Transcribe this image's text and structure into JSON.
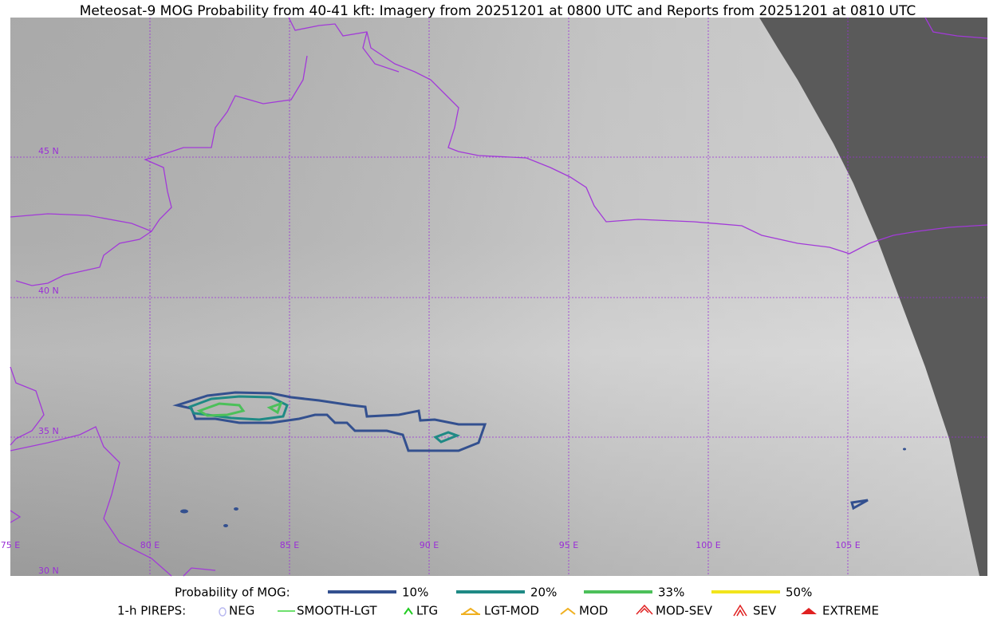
{
  "title": "Meteosat-9 MOG Probability from 40-41 kft: Imagery from 20251201 at 0800 UTC and Reports from 20251201 at 0810 UTC",
  "map": {
    "lat_labels": [
      "45 N",
      "40 N",
      "35 N",
      "30 N"
    ],
    "lon_labels": [
      "75 E",
      "80 E",
      "85 E",
      "90 E",
      "95 E",
      "100 E",
      "105 E"
    ]
  },
  "legend": {
    "probability": {
      "title": "Probability of MOG:",
      "items": [
        {
          "label": "10%",
          "color": "#33508f"
        },
        {
          "label": "20%",
          "color": "#1f8a85"
        },
        {
          "label": "33%",
          "color": "#4cc05a"
        },
        {
          "label": "50%",
          "color": "#f2e51c"
        }
      ]
    },
    "pireps": {
      "title": "1-h PIREPS:",
      "items": [
        "NEG",
        "SMOOTH-LGT",
        "LTG",
        "LGT-MOD",
        "MOD",
        "MOD-SEV",
        "SEV",
        "EXTREME"
      ]
    }
  }
}
